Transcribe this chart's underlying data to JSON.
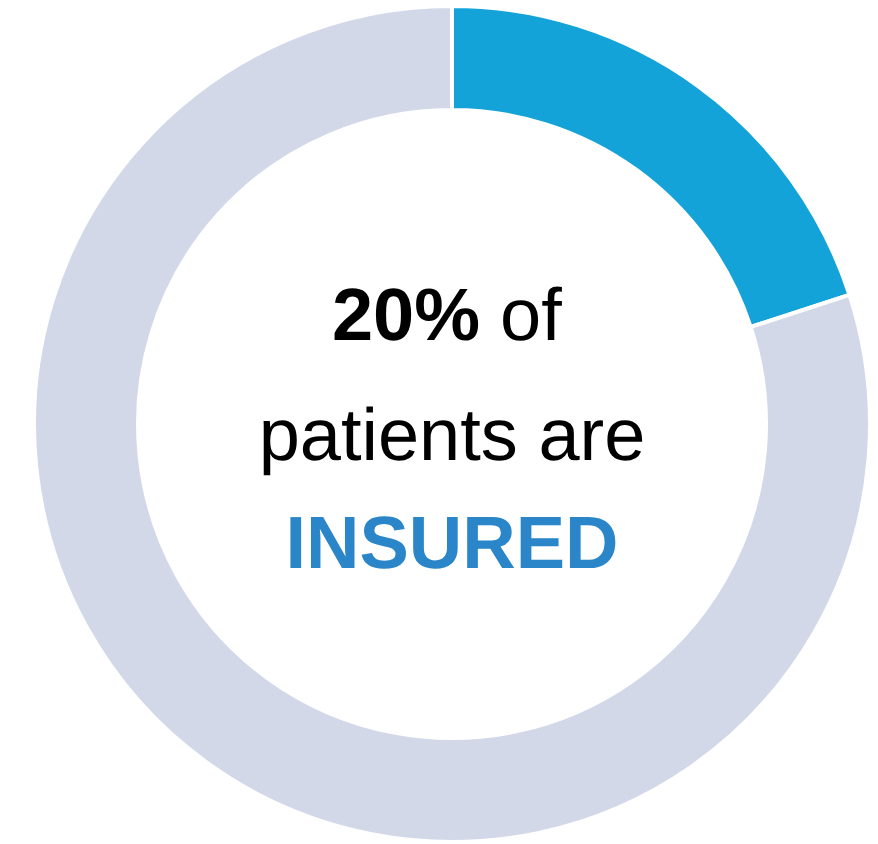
{
  "chart_data": {
    "type": "donut",
    "categories": [
      null,
      null
    ],
    "values": [
      20,
      80
    ],
    "colors": [
      "#14a3d8",
      "#d3d8e9"
    ],
    "annotations": [
      "20%",
      "of",
      "patients are",
      "INSURED"
    ]
  }
}
